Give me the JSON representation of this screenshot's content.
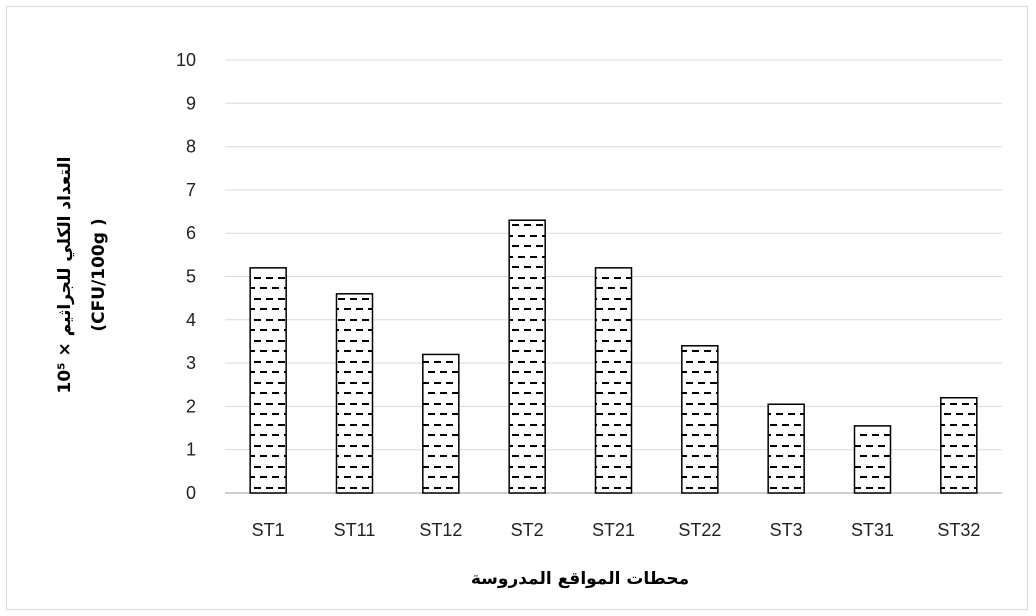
{
  "chart_data": {
    "type": "bar",
    "categories": [
      "ST1",
      "ST11",
      "ST12",
      "ST2",
      "ST21",
      "ST22",
      "ST3",
      "ST31",
      "ST32"
    ],
    "values": [
      5.2,
      4.6,
      3.2,
      6.3,
      5.2,
      3.4,
      2.05,
      1.55,
      2.2
    ],
    "xlabel": "محطات المواقع المدروسة",
    "ylabel_line1": "التعداد الكلي للجراثيم × 10⁵",
    "ylabel_line2": "(CFU/100g )",
    "ylim": [
      0,
      10
    ],
    "yticks": [
      "0",
      "1",
      "2",
      "3",
      "4",
      "5",
      "6",
      "7",
      "8",
      "9",
      "10"
    ],
    "grid": true,
    "bar_fill": "dashed-pattern",
    "colors": {
      "bar_outline": "#000000",
      "gridline": "#d9d9d9",
      "axis": "#bfbfbf"
    }
  }
}
